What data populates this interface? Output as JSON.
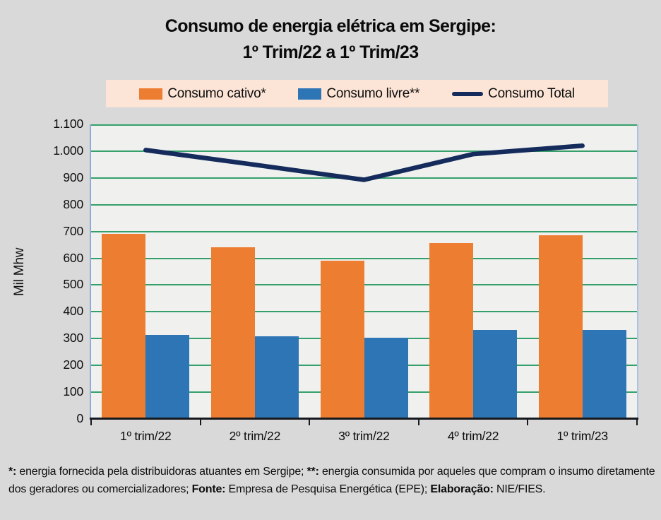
{
  "page": {
    "background": "#d9d9d9"
  },
  "title": {
    "line1": "Consumo de energia elétrica em Sergipe:",
    "line2": "1º Trim/22 a 1º Trim/23"
  },
  "legend": {
    "background": "#fce4d6",
    "items": [
      {
        "label": "Consumo cativo*",
        "swatch": "rect",
        "color": "#ed7d31"
      },
      {
        "label": "Consumo livre**",
        "swatch": "rect",
        "color": "#2e75b6"
      },
      {
        "label": "Consumo Total",
        "swatch": "line",
        "color": "#142b5c"
      }
    ]
  },
  "axes": {
    "y_label": "Mil Mhw",
    "y_ticks": [
      "1.100",
      "1.000",
      "900",
      "800",
      "700",
      "600",
      "500",
      "400",
      "300",
      "200",
      "100",
      "0"
    ],
    "grid_color": "#35a06b",
    "plot_background": "#f0f1ef",
    "left_border_color": "#8faadc",
    "right_border_color": "#aac4e4",
    "axis_color": "#15181d"
  },
  "chart_data": {
    "type": "bar",
    "title": "Consumo de energia elétrica em Sergipe: 1º Trim/22 a 1º Trim/23",
    "ylabel": "Mil Mhw",
    "ylim": [
      0,
      1100
    ],
    "y_tick_step": 100,
    "grid": true,
    "legend_position": "top",
    "categories": [
      "1º trim/22",
      "2º trim/22",
      "3º trim/22",
      "4º trim/22",
      "1º trim/23"
    ],
    "series": [
      {
        "name": "Consumo cativo*",
        "type": "bar",
        "color": "#ed7d31",
        "values": [
          690,
          640,
          590,
          657,
          687
        ]
      },
      {
        "name": "Consumo livre**",
        "type": "bar",
        "color": "#2e75b6",
        "values": [
          314,
          309,
          303,
          332,
          333
        ]
      },
      {
        "name": "Consumo Total",
        "type": "line",
        "color": "#142b5c",
        "values": [
          1004,
          949,
          893,
          989,
          1020
        ]
      }
    ]
  },
  "footnote": {
    "segments": [
      {
        "text": "*:",
        "bold": true
      },
      {
        "text": " energia fornecida pela distribuidoras atuantes em Sergipe; ",
        "bold": false
      },
      {
        "text": "**:",
        "bold": true
      },
      {
        "text": " energia consumida por aqueles que compram o insumo diretamente  dos geradores ou comercializadores; ",
        "bold": false
      },
      {
        "text": "Fonte:",
        "bold": true
      },
      {
        "text": " Empresa de Pesquisa Energética (EPE); ",
        "bold": false
      },
      {
        "text": "Elaboração:",
        "bold": true
      },
      {
        "text": " NIE/FIES.",
        "bold": false
      }
    ]
  }
}
